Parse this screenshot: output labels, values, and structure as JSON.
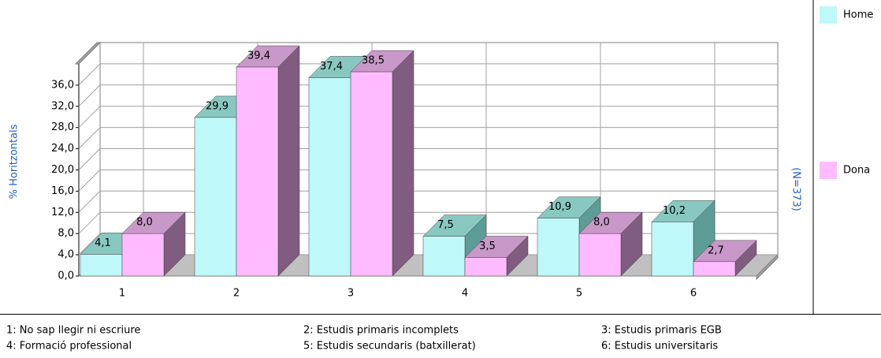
{
  "chart_data": {
    "type": "bar3d",
    "y_label": "% Horitzontals",
    "annotation": "(N=373)",
    "categories": [
      "1",
      "2",
      "3",
      "4",
      "5",
      "6"
    ],
    "series": [
      {
        "name": "Home",
        "color": "#bff8f8",
        "top_color": "#88c8c0",
        "side_color": "#5e9c98",
        "values": [
          4.1,
          29.9,
          37.4,
          7.5,
          10.9,
          10.2
        ],
        "value_labels": [
          "4,1",
          "29,9",
          "37,4",
          "7,5",
          "10,9",
          "10,2"
        ]
      },
      {
        "name": "Dona",
        "color": "#ffbbff",
        "top_color": "#c898c8",
        "side_color": "#805c80",
        "values": [
          8.0,
          39.4,
          38.5,
          3.5,
          8.0,
          2.7
        ],
        "value_labels": [
          "8,0",
          "39,4",
          "38,5",
          "3,5",
          "8,0",
          "2,7"
        ]
      }
    ],
    "ylim": [
      0,
      40
    ],
    "yticks": [
      {
        "value": 0,
        "label": "0,0"
      },
      {
        "value": 4,
        "label": "4,0"
      },
      {
        "value": 8,
        "label": "8,0"
      },
      {
        "value": 12,
        "label": "12,0"
      },
      {
        "value": 16,
        "label": "16,0"
      },
      {
        "value": 20,
        "label": "20,0"
      },
      {
        "value": 24,
        "label": "24,0"
      },
      {
        "value": 28,
        "label": "28,0"
      },
      {
        "value": 32,
        "label": "32,0"
      },
      {
        "value": 36,
        "label": "36,0"
      }
    ],
    "grid": true,
    "legend_position": "right",
    "footnotes": [
      "1: No sap llegir ni escriure",
      "2: Estudis primaris incomplets",
      "3: Estudis primaris EGB",
      "4: Formació professional",
      "5: Estudis secundaris (batxillerat)",
      "6: Estudis universitaris"
    ]
  }
}
